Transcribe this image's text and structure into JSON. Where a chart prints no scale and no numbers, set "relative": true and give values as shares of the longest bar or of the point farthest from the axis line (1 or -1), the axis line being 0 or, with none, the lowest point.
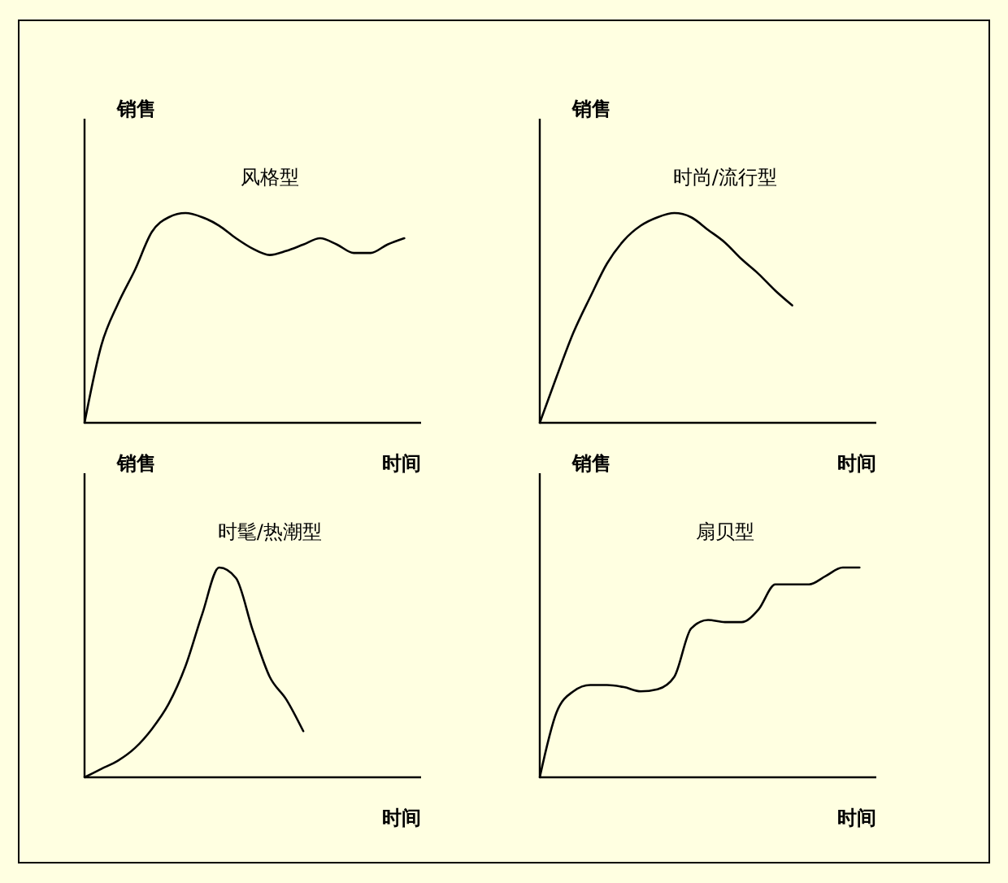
{
  "chart_data": [
    {
      "type": "line",
      "title": "风格型",
      "xlabel": "时间",
      "ylabel": "销售",
      "relative": true,
      "color": "#000000",
      "categories": [
        null,
        null,
        null,
        null,
        null,
        null,
        null,
        null,
        null,
        null,
        null,
        null,
        null,
        null,
        null,
        null,
        null,
        null,
        null,
        null,
        null
      ],
      "values": [
        0,
        0.37,
        0.57,
        0.73,
        0.91,
        0.98,
        1,
        0.98,
        0.94,
        0.88,
        0.83,
        0.8,
        0.82,
        0.85,
        0.88,
        0.85,
        0.81,
        0.81,
        0.85,
        0.88,
        null
      ]
    },
    {
      "type": "line",
      "title": "时尚/流行型",
      "xlabel": "时间",
      "ylabel": "销售",
      "relative": true,
      "color": "#000000",
      "categories": [
        null,
        null,
        null,
        null,
        null,
        null,
        null,
        null,
        null,
        null,
        null,
        null,
        null,
        null,
        null,
        null,
        null,
        null,
        null,
        null,
        null
      ],
      "values": [
        0,
        0.22,
        0.43,
        0.6,
        0.76,
        0.87,
        0.94,
        0.98,
        1,
        0.98,
        0.92,
        0.86,
        0.78,
        0.71,
        0.63,
        0.56,
        null,
        null,
        null,
        null,
        null
      ]
    },
    {
      "type": "line",
      "title": "时髦/热潮型",
      "xlabel": "时间",
      "ylabel": "销售",
      "relative": true,
      "color": "#000000",
      "categories": [
        null,
        null,
        null,
        null,
        null,
        null,
        null,
        null,
        null,
        null,
        null,
        null,
        null,
        null,
        null,
        null,
        null,
        null,
        null,
        null,
        null
      ],
      "values": [
        0,
        0.04,
        0.08,
        0.14,
        0.23,
        0.35,
        0.53,
        0.78,
        1,
        0.95,
        0.7,
        0.48,
        0.37,
        0.22,
        null,
        null,
        null,
        null,
        null,
        null,
        null
      ]
    },
    {
      "type": "line",
      "title": "扇贝型",
      "xlabel": "时间",
      "ylabel": "销售",
      "relative": true,
      "color": "#000000",
      "categories": [
        null,
        null,
        null,
        null,
        null,
        null,
        null,
        null,
        null,
        null,
        null,
        null,
        null,
        null,
        null,
        null,
        null,
        null,
        null,
        null,
        null
      ],
      "values": [
        0,
        0.31,
        0.41,
        0.44,
        0.44,
        0.43,
        0.41,
        0.42,
        0.48,
        0.71,
        0.75,
        0.74,
        0.74,
        0.8,
        0.92,
        0.92,
        0.92,
        0.96,
        1,
        1,
        null
      ]
    }
  ]
}
